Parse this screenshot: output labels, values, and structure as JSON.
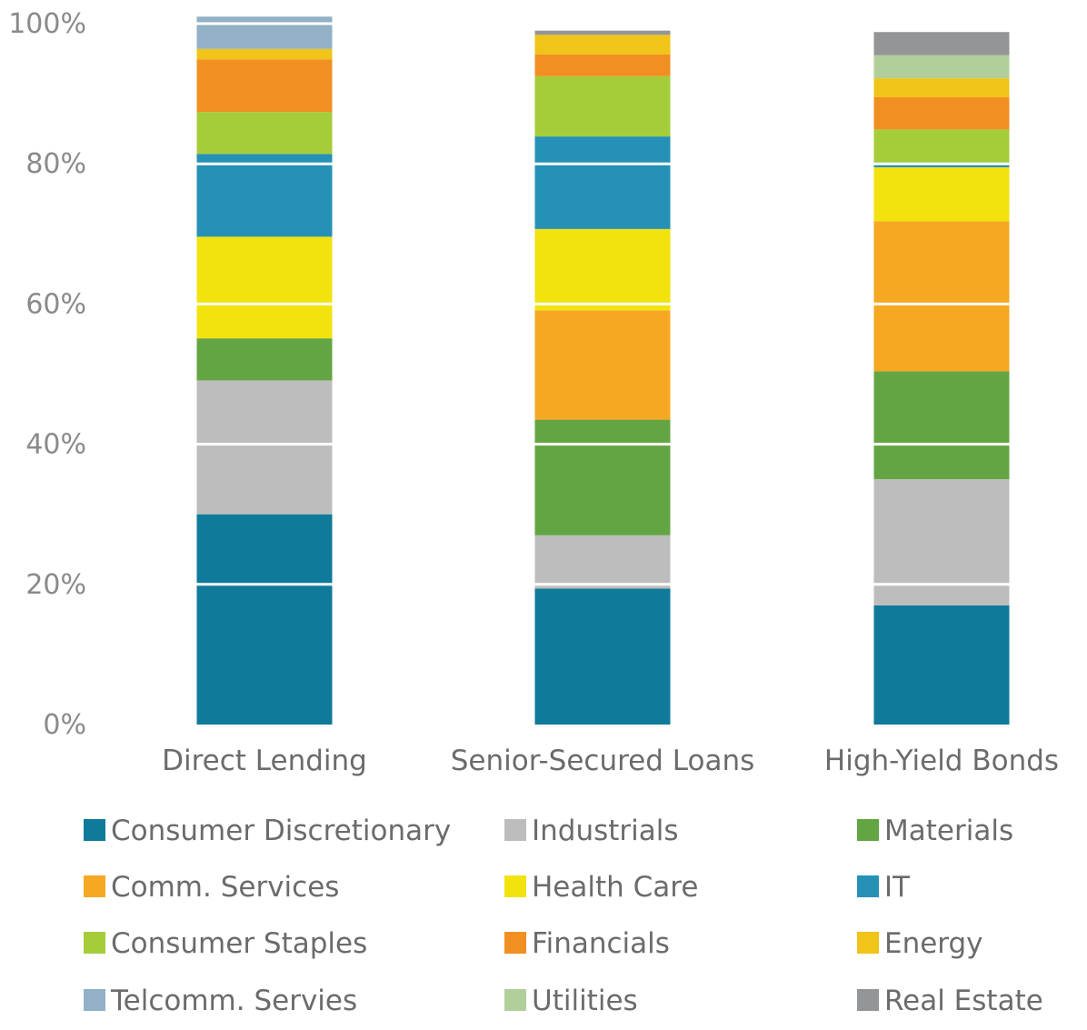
{
  "chart_data": {
    "type": "bar",
    "stacked": true,
    "title": "",
    "xlabel": "",
    "ylabel": "",
    "ylim": [
      0,
      100
    ],
    "y_ticks": [
      "0%",
      "20%",
      "40%",
      "60%",
      "80%",
      "100%"
    ],
    "y_tick_values": [
      0,
      20,
      40,
      60,
      80,
      100
    ],
    "categories": [
      "Direct Lending",
      "Senior-Secured Loans",
      "High-Yield Bonds"
    ],
    "series": [
      {
        "name": "Consumer Discretionary",
        "color": "#0f7a99",
        "values": [
          30.0,
          19.4,
          17.0
        ]
      },
      {
        "name": "Industrials",
        "color": "#bcbdbc",
        "values": [
          19.1,
          7.6,
          18.0
        ]
      },
      {
        "name": "Materials",
        "color": "#64a543",
        "values": [
          6.0,
          16.5,
          15.4
        ]
      },
      {
        "name": "Comm. Services",
        "color": "#f6a823",
        "values": [
          0.0,
          15.6,
          21.4
        ]
      },
      {
        "name": "Health Care",
        "color": "#f2e30f",
        "values": [
          14.5,
          11.6,
          7.7
        ]
      },
      {
        "name": "IT",
        "color": "#2591b6",
        "values": [
          11.8,
          13.2,
          0.7
        ]
      },
      {
        "name": "Consumer Staples",
        "color": "#a5cd3a",
        "values": [
          6.0,
          8.6,
          4.7
        ]
      },
      {
        "name": "Financials",
        "color": "#f28f22",
        "values": [
          7.5,
          3.1,
          4.6
        ]
      },
      {
        "name": "Energy",
        "color": "#f0c418",
        "values": [
          1.5,
          2.8,
          2.7
        ]
      },
      {
        "name": "Telcomm. Servies",
        "color": "#92b1c6",
        "values": [
          4.6,
          0.0,
          0.0
        ]
      },
      {
        "name": "Utilities",
        "color": "#b1cf9a",
        "values": [
          0.0,
          0.0,
          3.3
        ]
      },
      {
        "name": "Real Estate",
        "color": "#949596",
        "values": [
          0.0,
          0.6,
          3.3
        ]
      }
    ],
    "grid": false,
    "legend_position": "bottom"
  }
}
